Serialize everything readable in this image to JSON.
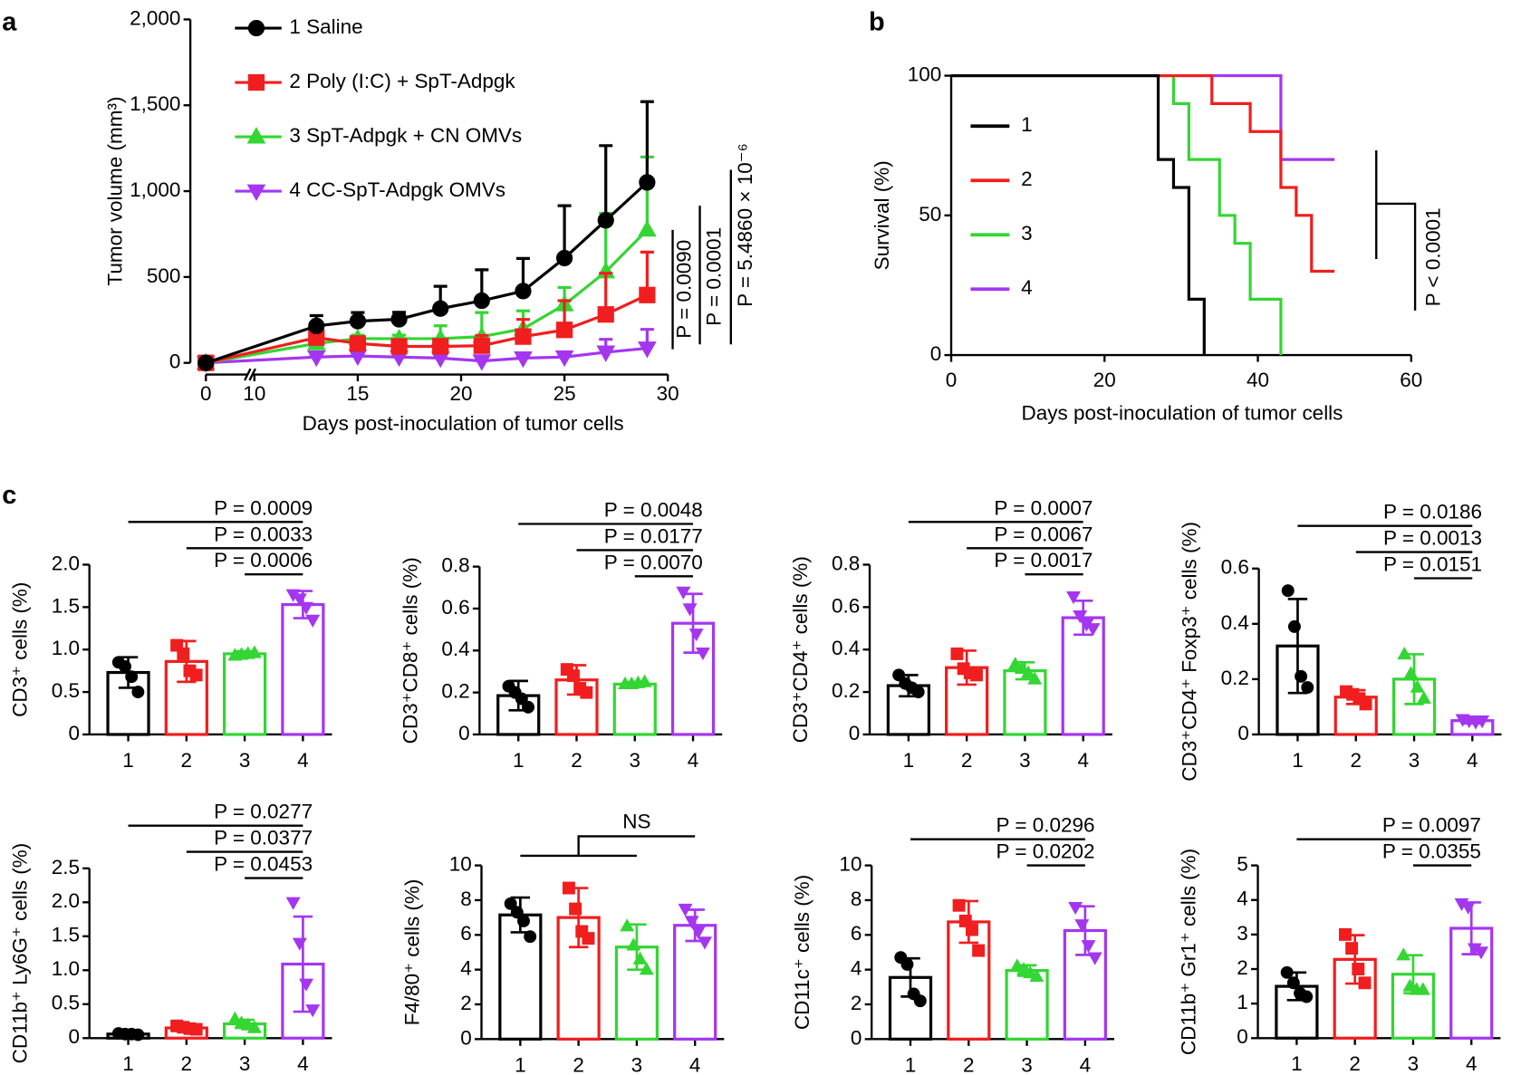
{
  "panel_labels": [
    "a",
    "b",
    "c"
  ],
  "chart_data": [
    {
      "type": "line",
      "xlabel": "Days post-inoculation of tumor cells",
      "ylabel": "Tumor volume (mm³)",
      "x": [
        0,
        13,
        15,
        17,
        19,
        21,
        23,
        25,
        27,
        29
      ],
      "xlim": [
        0,
        30
      ],
      "xticks": [
        0,
        10,
        15,
        20,
        25,
        30
      ],
      "ylim": [
        0,
        2000
      ],
      "yticks": [
        0,
        500,
        {
          "value": 1000,
          "label": "1,000"
        },
        {
          "value": 1500,
          "label": "1,500"
        },
        {
          "value": 2000,
          "label": "2,000"
        }
      ],
      "series": [
        {
          "name": "1 Saline",
          "color": "#000000",
          "marker": "circle",
          "values": [
            0,
            215,
            243,
            254,
            316,
            362,
            418,
            610,
            830,
            1051
          ],
          "errors": [
            0,
            60,
            50,
            40,
            130,
            180,
            190,
            305,
            435,
            470
          ]
        },
        {
          "name": "2 Poly (I:C) + SpT-Adpgk",
          "color": "#f01e1e",
          "marker": "square",
          "values": [
            0,
            147,
            113,
            96,
            96,
            100,
            153,
            192,
            282,
            395
          ],
          "errors": [
            0,
            40,
            30,
            30,
            40,
            60,
            100,
            170,
            240,
            250
          ]
        },
        {
          "name": "3 SpT-Adpgk + CN OMVs",
          "color": "#33d633",
          "marker": "triangle",
          "values": [
            0,
            113,
            141,
            141,
            141,
            153,
            198,
            339,
            531,
            774
          ],
          "errors": [
            0,
            30,
            20,
            20,
            75,
            140,
            105,
            100,
            340,
            425
          ]
        },
        {
          "name": "4 CC-SpT-Adpgk OMVs",
          "color": "#a436f0",
          "marker": "triangle-down",
          "values": [
            0,
            34,
            40,
            34,
            28,
            11,
            28,
            34,
            62,
            85
          ],
          "errors": [
            0,
            10,
            10,
            10,
            10,
            10,
            10,
            10,
            75,
            110
          ]
        }
      ],
      "annotations": [
        "P = 0.0090",
        "P = 0.0001",
        "P = 5.4860 × 10⁻⁶"
      ]
    },
    {
      "type": "step",
      "xlabel": "Days post-inoculation of tumor cells",
      "ylabel": "Survival (%)",
      "xlim": [
        0,
        60
      ],
      "xticks": [
        0,
        20,
        40,
        60
      ],
      "ylim": [
        0,
        100
      ],
      "yticks": [
        0,
        50,
        100
      ],
      "series": [
        {
          "name": "1",
          "color": "#000000",
          "x": [
            0,
            27,
            29,
            31,
            33
          ],
          "values": [
            100,
            70,
            60,
            20,
            0
          ]
        },
        {
          "name": "2",
          "color": "#f01e1e",
          "x": [
            0,
            34,
            39,
            43,
            45,
            47,
            50
          ],
          "values": [
            100,
            90,
            80,
            60,
            50,
            30,
            30
          ]
        },
        {
          "name": "3",
          "color": "#33d633",
          "x": [
            0,
            29,
            31,
            35,
            37,
            39,
            43
          ],
          "values": [
            100,
            90,
            70,
            50,
            40,
            20,
            0
          ]
        },
        {
          "name": "4",
          "color": "#a436f0",
          "x": [
            0,
            43,
            50
          ],
          "values": [
            100,
            70,
            70
          ]
        }
      ],
      "annotations": [
        "P < 0.0001"
      ]
    },
    {
      "type": "bar",
      "ylabel": "CD3⁺ cells  (%)",
      "categories": [
        "1",
        "2",
        "3",
        "4"
      ],
      "colors": [
        "#000000",
        "#f01e1e",
        "#33d633",
        "#a436f0"
      ],
      "markers": [
        "circle",
        "square",
        "triangle",
        "triangle-down"
      ],
      "values": [
        0.73,
        0.86,
        0.95,
        1.53
      ],
      "errors": [
        0.18,
        0.24,
        0.03,
        0.16
      ],
      "points": [
        [
          0.85,
          0.8,
          0.68,
          0.5
        ],
        [
          1.05,
          0.95,
          0.75,
          0.7
        ],
        [
          0.93,
          0.94,
          0.95,
          0.96
        ],
        [
          1.65,
          1.6,
          1.5,
          1.35
        ]
      ],
      "ylim": [
        0,
        2
      ],
      "yticks": [
        0,
        0.5,
        {
          "value": 1,
          "label": "1.0"
        },
        1.5,
        {
          "value": 2,
          "label": "2.0"
        }
      ],
      "annotations": [
        {
          "text": "P = 0.0009",
          "between": [
            "1",
            "4"
          ]
        },
        {
          "text": "P = 0.0033",
          "between": [
            "2",
            "4"
          ]
        },
        {
          "text": "P = 0.0006",
          "between": [
            "3",
            "4"
          ]
        }
      ]
    },
    {
      "type": "bar",
      "ylabel": "CD3⁺CD8⁺ cells (%)",
      "categories": [
        "1",
        "2",
        "3",
        "4"
      ],
      "colors": [
        "#000000",
        "#f01e1e",
        "#33d633",
        "#a436f0"
      ],
      "markers": [
        "circle",
        "square",
        "triangle",
        "triangle-down"
      ],
      "values": [
        0.185,
        0.26,
        0.24,
        0.53
      ],
      "errors": [
        0.07,
        0.07,
        0.01,
        0.14
      ],
      "points": [
        [
          0.23,
          0.2,
          0.17,
          0.13
        ],
        [
          0.31,
          0.28,
          0.22,
          0.2
        ],
        [
          0.24,
          0.24,
          0.245,
          0.25
        ],
        [
          0.68,
          0.6,
          0.48,
          0.39
        ]
      ],
      "ylim": [
        0,
        0.8
      ],
      "yticks": [
        0,
        0.2,
        0.4,
        0.6,
        0.8
      ],
      "annotations": [
        {
          "text": "P = 0.0048",
          "between": [
            "1",
            "4"
          ]
        },
        {
          "text": "P = 0.0177",
          "between": [
            "2",
            "4"
          ]
        },
        {
          "text": "P = 0.0070",
          "between": [
            "3",
            "4"
          ]
        }
      ]
    },
    {
      "type": "bar",
      "ylabel": "CD3⁺CD4⁺ cells (%)",
      "categories": [
        "1",
        "2",
        "3",
        "4"
      ],
      "colors": [
        "#000000",
        "#f01e1e",
        "#33d633",
        "#a436f0"
      ],
      "markers": [
        "circle",
        "square",
        "triangle",
        "triangle-down"
      ],
      "values": [
        0.23,
        0.315,
        0.3,
        0.55
      ],
      "errors": [
        0.05,
        0.08,
        0.04,
        0.08
      ],
      "points": [
        [
          0.28,
          0.24,
          0.22,
          0.2
        ],
        [
          0.38,
          0.31,
          0.29,
          0.28
        ],
        [
          0.33,
          0.31,
          0.29,
          0.26
        ],
        [
          0.65,
          0.56,
          0.52,
          0.5
        ]
      ],
      "ylim": [
        0,
        0.8
      ],
      "yticks": [
        0,
        0.2,
        0.4,
        0.6,
        0.8
      ],
      "annotations": [
        {
          "text": "P = 0.0007",
          "between": [
            "1",
            "4"
          ]
        },
        {
          "text": "P = 0.0067",
          "between": [
            "2",
            "4"
          ]
        },
        {
          "text": "P = 0.0017",
          "between": [
            "3",
            "4"
          ]
        }
      ]
    },
    {
      "type": "bar",
      "ylabel": "CD3⁺CD4⁺ Foxp3⁺ cells (%)",
      "categories": [
        "1",
        "2",
        "3",
        "4"
      ],
      "colors": [
        "#000000",
        "#f01e1e",
        "#33d633",
        "#a436f0"
      ],
      "markers": [
        "circle",
        "square",
        "triangle",
        "triangle-down"
      ],
      "values": [
        0.32,
        0.135,
        0.2,
        0.05
      ],
      "errors": [
        0.17,
        0.025,
        0.09,
        0.01
      ],
      "points": [
        [
          0.52,
          0.39,
          0.21,
          0.17
        ],
        [
          0.155,
          0.145,
          0.13,
          0.11
        ],
        [
          0.29,
          0.22,
          0.17,
          0.13
        ],
        [
          0.055,
          0.05,
          0.045,
          0.05
        ]
      ],
      "ylim": [
        0,
        0.6
      ],
      "yticks": [
        0,
        0.2,
        0.4,
        0.6
      ],
      "annotations": [
        {
          "text": "P = 0.0186",
          "between": [
            "1",
            "4"
          ]
        },
        {
          "text": "P = 0.0013",
          "between": [
            "2",
            "4"
          ]
        },
        {
          "text": "P = 0.0151",
          "between": [
            "3",
            "4"
          ]
        }
      ]
    },
    {
      "type": "bar",
      "ylabel": "CD11b⁺ Ly6G⁺ cells (%)",
      "categories": [
        "1",
        "2",
        "3",
        "4"
      ],
      "colors": [
        "#000000",
        "#f01e1e",
        "#33d633",
        "#a436f0"
      ],
      "markers": [
        "circle",
        "square",
        "triangle",
        "triangle-down"
      ],
      "values": [
        0.06,
        0.15,
        0.21,
        1.09
      ],
      "errors": [
        0.01,
        0.03,
        0.06,
        0.7
      ],
      "points": [
        [
          0.07,
          0.06,
          0.06,
          0.05
        ],
        [
          0.18,
          0.16,
          0.14,
          0.13
        ],
        [
          0.28,
          0.22,
          0.19,
          0.15
        ],
        [
          2.0,
          1.4,
          0.8,
          0.42
        ]
      ],
      "ylim": [
        0,
        2.5
      ],
      "yticks": [
        0,
        0.5,
        {
          "value": 1,
          "label": "1.0"
        },
        1.5,
        {
          "value": 2,
          "label": "2.0"
        },
        2.5
      ],
      "annotations": [
        {
          "text": "P = 0.0277",
          "between": [
            "1",
            "4"
          ]
        },
        {
          "text": "P = 0.0377",
          "between": [
            "2",
            "4"
          ]
        },
        {
          "text": "P = 0.0453",
          "between": [
            "3",
            "4"
          ]
        }
      ]
    },
    {
      "type": "bar",
      "ylabel": "F4/80⁺ cells (%)",
      "categories": [
        "1",
        "2",
        "3",
        "4"
      ],
      "colors": [
        "#000000",
        "#f01e1e",
        "#33d633",
        "#a436f0"
      ],
      "markers": [
        "circle",
        "square",
        "triangle",
        "triangle-down"
      ],
      "values": [
        7.15,
        7.0,
        5.3,
        6.55
      ],
      "errors": [
        1.0,
        1.7,
        1.3,
        0.9
      ],
      "points": [
        [
          7.8,
          7.3,
          6.8,
          5.9
        ],
        [
          8.7,
          7.5,
          6.2,
          5.8
        ],
        [
          6.5,
          5.4,
          4.6,
          4.0
        ],
        [
          7.5,
          6.8,
          6.2,
          5.6
        ]
      ],
      "ylim": [
        0,
        10
      ],
      "yticks": [
        0,
        2,
        4,
        6,
        8,
        10
      ],
      "annotations": [
        {
          "text": "NS",
          "between": [
            "1",
            "2",
            "3",
            "4"
          ]
        }
      ]
    },
    {
      "type": "bar",
      "ylabel": "CD11c⁺ cells (%)",
      "categories": [
        "1",
        "2",
        "3",
        "4"
      ],
      "colors": [
        "#000000",
        "#f01e1e",
        "#33d633",
        "#a436f0"
      ],
      "markers": [
        "circle",
        "square",
        "triangle",
        "triangle-down"
      ],
      "values": [
        3.55,
        6.75,
        3.95,
        6.25
      ],
      "errors": [
        1.1,
        1.2,
        0.3,
        1.4
      ],
      "points": [
        [
          4.7,
          4.3,
          2.6,
          2.2
        ],
        [
          7.7,
          6.8,
          6.3,
          5.1
        ],
        [
          4.2,
          4.0,
          3.8,
          3.6
        ],
        [
          7.6,
          6.6,
          5.4,
          4.7
        ]
      ],
      "ylim": [
        0,
        10
      ],
      "yticks": [
        0,
        2,
        4,
        6,
        8,
        10
      ],
      "annotations": [
        {
          "text": "P = 0.0296",
          "between": [
            "1",
            "4"
          ]
        },
        {
          "text": "P = 0.0202",
          "between": [
            "3",
            "4"
          ]
        }
      ]
    },
    {
      "type": "bar",
      "ylabel": "CD11b⁺ Gr1⁺ cells (%)",
      "categories": [
        "1",
        "2",
        "3",
        "4"
      ],
      "colors": [
        "#000000",
        "#f01e1e",
        "#33d633",
        "#a436f0"
      ],
      "markers": [
        "circle",
        "square",
        "triangle",
        "triangle-down"
      ],
      "values": [
        1.5,
        2.28,
        1.85,
        3.18
      ],
      "errors": [
        0.4,
        0.7,
        0.55,
        0.75
      ],
      "points": [
        [
          1.9,
          1.6,
          1.3,
          1.2
        ],
        [
          3.0,
          2.6,
          2.0,
          1.6
        ],
        [
          2.4,
          1.5,
          1.4,
          1.4
        ],
        [
          3.9,
          3.8,
          2.6,
          2.5
        ]
      ],
      "ylim": [
        0,
        5
      ],
      "yticks": [
        0,
        1,
        2,
        3,
        4,
        5
      ],
      "annotations": [
        {
          "text": "P = 0.0097",
          "between": [
            "1",
            "4"
          ]
        },
        {
          "text": "P = 0.0355",
          "between": [
            "3",
            "4"
          ]
        }
      ]
    }
  ]
}
